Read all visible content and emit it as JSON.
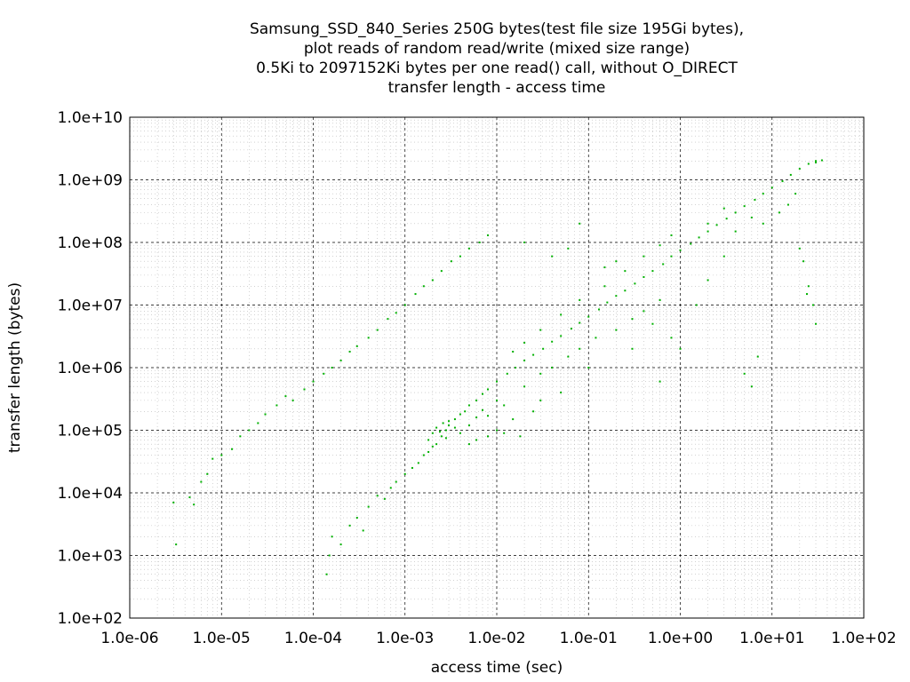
{
  "chart_data": {
    "type": "scatter",
    "title": [
      "Samsung_SSD_840_Series 250G bytes(test file size 195Gi bytes),",
      "plot reads of random read/write (mixed size range)",
      "0.5Ki to 2097152Ki bytes per one read() call, without O_DIRECT",
      "transfer length - access time"
    ],
    "xlabel": "access time (sec)",
    "ylabel": "transfer length (bytes)",
    "x_scale": "log",
    "y_scale": "log",
    "xlim": [
      1e-06,
      100
    ],
    "ylim": [
      100,
      10000000000.0
    ],
    "x_ticks": [
      {
        "value": 1e-06,
        "label": "1.0e-06"
      },
      {
        "value": 1e-05,
        "label": "1.0e-05"
      },
      {
        "value": 0.0001,
        "label": "1.0e-04"
      },
      {
        "value": 0.001,
        "label": "1.0e-03"
      },
      {
        "value": 0.01,
        "label": "1.0e-02"
      },
      {
        "value": 0.1,
        "label": "1.0e-01"
      },
      {
        "value": 1,
        "label": "1.0e+00"
      },
      {
        "value": 10,
        "label": "1.0e+01"
      },
      {
        "value": 100,
        "label": "1.0e+02"
      }
    ],
    "y_ticks": [
      {
        "value": 100.0,
        "label": "1.0e+02"
      },
      {
        "value": 1000.0,
        "label": "1.0e+03"
      },
      {
        "value": 10000.0,
        "label": "1.0e+04"
      },
      {
        "value": 100000.0,
        "label": "1.0e+05"
      },
      {
        "value": 1000000.0,
        "label": "1.0e+06"
      },
      {
        "value": 10000000.0,
        "label": "1.0e+07"
      },
      {
        "value": 100000000.0,
        "label": "1.0e+08"
      },
      {
        "value": 1000000000.0,
        "label": "1.0e+09"
      },
      {
        "value": 10000000000.0,
        "label": "1.0e+10"
      }
    ],
    "grid": {
      "major": true,
      "minor": true
    },
    "legend": "none",
    "series": [
      {
        "color": "#00b000",
        "points": [
          [
            3e-06,
            7000
          ],
          [
            3.2e-06,
            1500
          ],
          [
            4.5e-06,
            8500
          ],
          [
            5e-06,
            6500
          ],
          [
            6e-06,
            15000
          ],
          [
            7e-06,
            20000
          ],
          [
            8e-06,
            35000
          ],
          [
            1e-05,
            40000
          ],
          [
            1.3e-05,
            50000
          ],
          [
            1.6e-05,
            80000
          ],
          [
            2e-05,
            100000
          ],
          [
            2.5e-05,
            130000
          ],
          [
            3e-05,
            180000
          ],
          [
            4e-05,
            250000
          ],
          [
            5e-05,
            350000
          ],
          [
            6e-05,
            300000
          ],
          [
            8e-05,
            450000
          ],
          [
            0.0001,
            600000
          ],
          [
            0.00013,
            800000
          ],
          [
            0.00016,
            1000000
          ],
          [
            0.0002,
            1300000
          ],
          [
            0.00025,
            1800000
          ],
          [
            0.0003,
            2200000
          ],
          [
            0.0004,
            3000000
          ],
          [
            0.0005,
            4000000
          ],
          [
            0.00065,
            6000000
          ],
          [
            0.0008,
            7500000
          ],
          [
            0.001,
            10000000
          ],
          [
            0.0013,
            15000000
          ],
          [
            0.0016,
            20000000
          ],
          [
            0.002,
            25000000
          ],
          [
            0.0025,
            35000000
          ],
          [
            0.0032,
            50000000
          ],
          [
            0.004,
            60000000
          ],
          [
            0.005,
            80000000
          ],
          [
            0.0065,
            100000000
          ],
          [
            0.008,
            130000000
          ],
          [
            0.00014,
            500
          ],
          [
            0.00015,
            1000
          ],
          [
            0.00016,
            2000
          ],
          [
            0.0002,
            1500
          ],
          [
            0.00025,
            3000
          ],
          [
            0.0003,
            4000
          ],
          [
            0.00035,
            2500
          ],
          [
            0.0004,
            6000
          ],
          [
            0.0005,
            9000
          ],
          [
            0.0006,
            8000
          ],
          [
            0.0007,
            12000
          ],
          [
            0.0008,
            15000
          ],
          [
            0.001,
            20000
          ],
          [
            0.0012,
            25000
          ],
          [
            0.0014,
            30000
          ],
          [
            0.0016,
            40000
          ],
          [
            0.0018,
            45000
          ],
          [
            0.002,
            55000
          ],
          [
            0.0022,
            60000
          ],
          [
            0.0025,
            80000
          ],
          [
            0.0028,
            100000
          ],
          [
            0.003,
            120000
          ],
          [
            0.0035,
            150000
          ],
          [
            0.004,
            180000
          ],
          [
            0.0045,
            200000
          ],
          [
            0.005,
            250000
          ],
          [
            0.006,
            300000
          ],
          [
            0.007,
            380000
          ],
          [
            0.008,
            450000
          ],
          [
            0.01,
            600000
          ],
          [
            0.013,
            800000
          ],
          [
            0.016,
            1000000
          ],
          [
            0.02,
            1300000
          ],
          [
            0.025,
            1600000
          ],
          [
            0.032,
            2000000
          ],
          [
            0.04,
            2600000
          ],
          [
            0.05,
            3200000
          ],
          [
            0.065,
            4200000
          ],
          [
            0.08,
            5200000
          ],
          [
            0.1,
            6500000
          ],
          [
            0.13,
            8500000
          ],
          [
            0.16,
            11000000
          ],
          [
            0.2,
            14000000
          ],
          [
            0.25,
            17000000
          ],
          [
            0.32,
            22000000
          ],
          [
            0.4,
            28000000
          ],
          [
            0.5,
            35000000
          ],
          [
            0.65,
            45000000
          ],
          [
            0.8,
            60000000
          ],
          [
            1.0,
            75000000
          ],
          [
            1.3,
            95000000
          ],
          [
            1.6,
            120000000
          ],
          [
            2.0,
            150000000
          ],
          [
            2.5,
            190000000
          ],
          [
            3.2,
            240000000
          ],
          [
            4.0,
            300000000
          ],
          [
            5.0,
            380000000
          ],
          [
            6.5,
            480000000
          ],
          [
            8.0,
            600000000
          ],
          [
            10,
            750000000
          ],
          [
            13,
            950000000
          ],
          [
            16,
            1200000000
          ],
          [
            20,
            1500000000
          ],
          [
            25,
            1800000000
          ],
          [
            30,
            2000000000
          ],
          [
            35,
            2050000000
          ],
          [
            0.0018,
            70000
          ],
          [
            0.002,
            90000
          ],
          [
            0.0022,
            110000
          ],
          [
            0.0024,
            95000
          ],
          [
            0.0026,
            130000
          ],
          [
            0.0028,
            75000
          ],
          [
            0.003,
            140000
          ],
          [
            0.0035,
            110000
          ],
          [
            0.004,
            90000
          ],
          [
            0.005,
            120000
          ],
          [
            0.006,
            160000
          ],
          [
            0.007,
            210000
          ],
          [
            0.008,
            170000
          ],
          [
            0.01,
            300000
          ],
          [
            0.012,
            250000
          ],
          [
            0.01,
            100000
          ],
          [
            0.012,
            90000
          ],
          [
            0.008,
            80000
          ],
          [
            0.006,
            70000
          ],
          [
            0.005,
            60000
          ],
          [
            0.02,
            500000
          ],
          [
            0.03,
            800000
          ],
          [
            0.04,
            1000000
          ],
          [
            0.06,
            1500000
          ],
          [
            0.08,
            2000000
          ],
          [
            0.12,
            3000000
          ],
          [
            0.2,
            4000000
          ],
          [
            0.3,
            6000000
          ],
          [
            0.4,
            8000000
          ],
          [
            0.6,
            12000000
          ],
          [
            0.015,
            1800000
          ],
          [
            0.02,
            2500000
          ],
          [
            0.03,
            4000000
          ],
          [
            0.05,
            7000000
          ],
          [
            0.08,
            12000000
          ],
          [
            0.15,
            20000000
          ],
          [
            0.25,
            35000000
          ],
          [
            0.4,
            60000000
          ],
          [
            0.6,
            90000000
          ],
          [
            0.8,
            130000000
          ],
          [
            2.0,
            200000000
          ],
          [
            3.0,
            350000000
          ],
          [
            0.3,
            2000000
          ],
          [
            0.5,
            5000000
          ],
          [
            0.8,
            3000000
          ],
          [
            1.5,
            10000000
          ],
          [
            2.0,
            25000000
          ],
          [
            3.0,
            60000000
          ],
          [
            4.0,
            150000000
          ],
          [
            6.0,
            250000000
          ],
          [
            8.0,
            200000000
          ],
          [
            12,
            300000000
          ],
          [
            15,
            400000000
          ],
          [
            18,
            600000000
          ],
          [
            20,
            80000000
          ],
          [
            22,
            50000000
          ],
          [
            25,
            20000000
          ],
          [
            28,
            10000000
          ],
          [
            30,
            5000000
          ],
          [
            24,
            15000000
          ],
          [
            5.0,
            800000
          ],
          [
            6.0,
            500000
          ],
          [
            7.0,
            1500000
          ],
          [
            1.0,
            2000000
          ],
          [
            0.6,
            600000
          ],
          [
            0.08,
            200000000
          ],
          [
            0.02,
            100000000
          ],
          [
            0.04,
            60000000
          ],
          [
            0.06,
            80000000
          ],
          [
            0.1,
            1000000
          ],
          [
            0.05,
            400000
          ],
          [
            0.03,
            300000
          ],
          [
            0.015,
            150000
          ],
          [
            0.025,
            200000
          ],
          [
            0.018,
            80000
          ],
          [
            0.2,
            50000000
          ],
          [
            0.15,
            40000000
          ],
          [
            30,
            1900000000
          ]
        ]
      }
    ]
  }
}
